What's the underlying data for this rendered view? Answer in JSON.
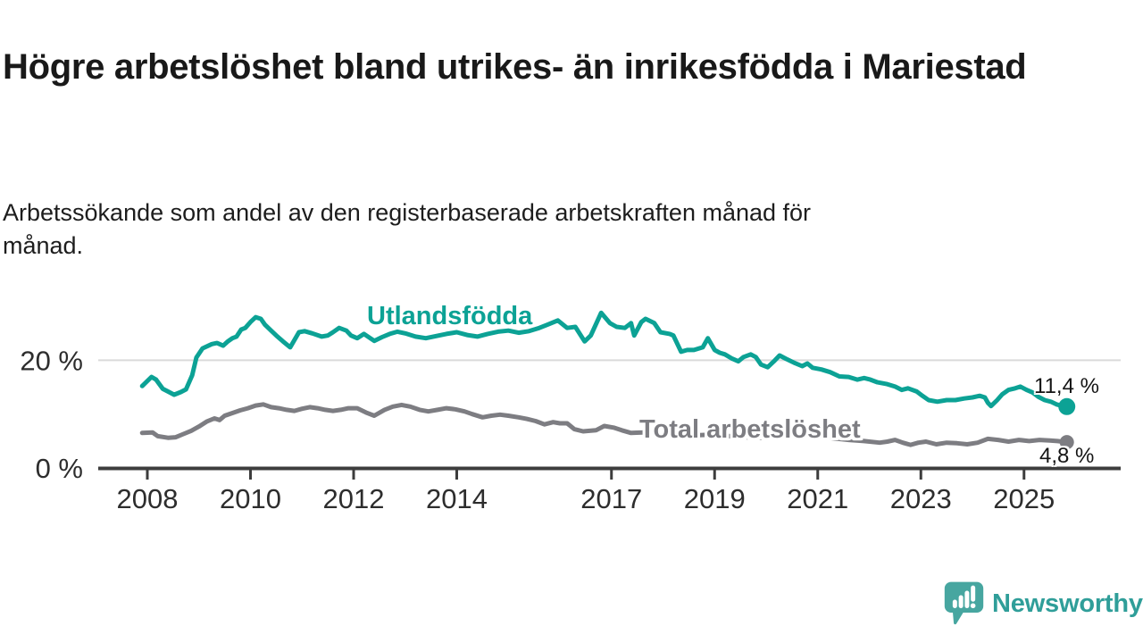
{
  "header": {
    "title_lines": [
      "Högre arbetslöshet bland utrikes- än inrikesfödda i",
      "Mariestad"
    ],
    "title": "Högre arbetslöshet bland utrikes- än inrikesfödda i Mariestad",
    "subtitle": "Arbetssökande som andel av den registerbaserade arbetskraften månad för månad.",
    "subtitle_lines": [
      "Arbetssökande som andel av den registerbaserade arbetskraften månad för",
      "månad."
    ]
  },
  "branding": {
    "name": "Newsworthy",
    "logo_icon": "speech-bubble-bar-chart",
    "bubble_color": "#47A6A0",
    "text_color": "#2F9E99"
  },
  "chart_data": {
    "type": "line",
    "unit": "%",
    "grid": "horizontal line at 20% only",
    "legend_position": "inline labels on lines",
    "x_axis": {
      "tick_years": [
        2008,
        2010,
        2012,
        2014,
        2017,
        2019,
        2021,
        2023,
        2025
      ],
      "range": [
        2007.0,
        2026.9
      ]
    },
    "y_axis": {
      "ticks": [
        {
          "value": 0,
          "label": "0 %"
        },
        {
          "value": 20,
          "label": "20 %"
        }
      ],
      "range": [
        0,
        30.5
      ]
    },
    "series": [
      {
        "label": "Utlandsfödda",
        "color": "#0CA295",
        "end_value": 11.4,
        "end_label": "11,4 %",
        "points": [
          [
            2007.9,
            15.2
          ],
          [
            2008.08,
            16.9
          ],
          [
            2008.17,
            16.4
          ],
          [
            2008.3,
            14.7
          ],
          [
            2008.4,
            14.2
          ],
          [
            2008.52,
            13.6
          ],
          [
            2008.65,
            14.1
          ],
          [
            2008.75,
            14.6
          ],
          [
            2008.87,
            17.2
          ],
          [
            2008.95,
            20.5
          ],
          [
            2009.07,
            22.2
          ],
          [
            2009.25,
            23.0
          ],
          [
            2009.35,
            23.2
          ],
          [
            2009.47,
            22.7
          ],
          [
            2009.56,
            23.5
          ],
          [
            2009.65,
            24.1
          ],
          [
            2009.73,
            24.4
          ],
          [
            2009.82,
            25.7
          ],
          [
            2009.9,
            26.0
          ],
          [
            2010.0,
            27.1
          ],
          [
            2010.1,
            28.0
          ],
          [
            2010.2,
            27.7
          ],
          [
            2010.28,
            26.6
          ],
          [
            2010.4,
            25.5
          ],
          [
            2010.5,
            24.6
          ],
          [
            2010.63,
            23.5
          ],
          [
            2010.77,
            22.4
          ],
          [
            2010.94,
            25.2
          ],
          [
            2011.05,
            25.4
          ],
          [
            2011.2,
            25.0
          ],
          [
            2011.38,
            24.4
          ],
          [
            2011.5,
            24.6
          ],
          [
            2011.6,
            25.2
          ],
          [
            2011.72,
            26.0
          ],
          [
            2011.86,
            25.5
          ],
          [
            2011.95,
            24.6
          ],
          [
            2012.07,
            24.1
          ],
          [
            2012.2,
            24.9
          ],
          [
            2012.4,
            23.6
          ],
          [
            2012.55,
            24.3
          ],
          [
            2012.7,
            24.9
          ],
          [
            2012.85,
            25.3
          ],
          [
            2013.0,
            25.0
          ],
          [
            2013.2,
            24.4
          ],
          [
            2013.4,
            24.1
          ],
          [
            2013.6,
            24.5
          ],
          [
            2013.8,
            24.9
          ],
          [
            2014.0,
            25.2
          ],
          [
            2014.2,
            24.7
          ],
          [
            2014.4,
            24.4
          ],
          [
            2014.6,
            24.9
          ],
          [
            2014.8,
            25.3
          ],
          [
            2015.0,
            25.5
          ],
          [
            2015.2,
            25.1
          ],
          [
            2015.4,
            25.4
          ],
          [
            2015.6,
            26.0
          ],
          [
            2015.76,
            26.6
          ],
          [
            2015.96,
            27.4
          ],
          [
            2016.14,
            26.0
          ],
          [
            2016.3,
            26.2
          ],
          [
            2016.48,
            23.5
          ],
          [
            2016.6,
            24.6
          ],
          [
            2016.8,
            28.8
          ],
          [
            2016.97,
            26.9
          ],
          [
            2017.1,
            26.2
          ],
          [
            2017.26,
            26.0
          ],
          [
            2017.38,
            26.9
          ],
          [
            2017.44,
            24.6
          ],
          [
            2017.58,
            27.1
          ],
          [
            2017.66,
            27.7
          ],
          [
            2017.83,
            26.9
          ],
          [
            2017.95,
            25.2
          ],
          [
            2018.13,
            24.9
          ],
          [
            2018.2,
            24.6
          ],
          [
            2018.35,
            21.6
          ],
          [
            2018.47,
            21.9
          ],
          [
            2018.6,
            21.9
          ],
          [
            2018.77,
            22.4
          ],
          [
            2018.87,
            24.1
          ],
          [
            2019.0,
            21.9
          ],
          [
            2019.1,
            21.4
          ],
          [
            2019.2,
            21.1
          ],
          [
            2019.34,
            20.3
          ],
          [
            2019.46,
            19.8
          ],
          [
            2019.56,
            20.6
          ],
          [
            2019.7,
            21.1
          ],
          [
            2019.8,
            20.6
          ],
          [
            2019.9,
            19.2
          ],
          [
            2020.03,
            18.7
          ],
          [
            2020.15,
            19.8
          ],
          [
            2020.26,
            20.9
          ],
          [
            2020.38,
            20.3
          ],
          [
            2020.55,
            19.5
          ],
          [
            2020.7,
            18.9
          ],
          [
            2020.8,
            19.4
          ],
          [
            2020.9,
            18.6
          ],
          [
            2021.07,
            18.3
          ],
          [
            2021.24,
            17.8
          ],
          [
            2021.42,
            17.0
          ],
          [
            2021.6,
            16.9
          ],
          [
            2021.77,
            16.4
          ],
          [
            2021.9,
            16.7
          ],
          [
            2022.02,
            16.4
          ],
          [
            2022.16,
            15.9
          ],
          [
            2022.33,
            15.6
          ],
          [
            2022.5,
            15.1
          ],
          [
            2022.63,
            14.5
          ],
          [
            2022.75,
            14.8
          ],
          [
            2022.92,
            14.2
          ],
          [
            2023.03,
            13.4
          ],
          [
            2023.15,
            12.6
          ],
          [
            2023.32,
            12.3
          ],
          [
            2023.5,
            12.6
          ],
          [
            2023.67,
            12.6
          ],
          [
            2023.84,
            12.9
          ],
          [
            2024.0,
            13.1
          ],
          [
            2024.14,
            13.4
          ],
          [
            2024.24,
            13.1
          ],
          [
            2024.3,
            12.1
          ],
          [
            2024.36,
            11.5
          ],
          [
            2024.48,
            12.6
          ],
          [
            2024.58,
            13.7
          ],
          [
            2024.7,
            14.5
          ],
          [
            2024.83,
            14.8
          ],
          [
            2024.93,
            15.1
          ],
          [
            2025.05,
            14.5
          ],
          [
            2025.17,
            14.0
          ],
          [
            2025.28,
            13.2
          ],
          [
            2025.4,
            12.6
          ],
          [
            2025.52,
            12.3
          ],
          [
            2025.63,
            11.8
          ],
          [
            2025.75,
            11.5
          ],
          [
            2025.83,
            11.4
          ]
        ]
      },
      {
        "label": "Total arbetslöshet",
        "color": "#7D7D82",
        "end_value": 4.8,
        "end_label": "4,8 %",
        "points": [
          [
            2007.9,
            6.5
          ],
          [
            2008.1,
            6.6
          ],
          [
            2008.2,
            5.9
          ],
          [
            2008.4,
            5.6
          ],
          [
            2008.55,
            5.7
          ],
          [
            2008.7,
            6.3
          ],
          [
            2008.85,
            6.9
          ],
          [
            2009.0,
            7.7
          ],
          [
            2009.15,
            8.6
          ],
          [
            2009.3,
            9.2
          ],
          [
            2009.4,
            8.9
          ],
          [
            2009.5,
            9.7
          ],
          [
            2009.65,
            10.2
          ],
          [
            2009.8,
            10.7
          ],
          [
            2009.95,
            11.1
          ],
          [
            2010.1,
            11.6
          ],
          [
            2010.25,
            11.8
          ],
          [
            2010.4,
            11.3
          ],
          [
            2010.55,
            11.1
          ],
          [
            2010.7,
            10.8
          ],
          [
            2010.85,
            10.6
          ],
          [
            2011.0,
            11.0
          ],
          [
            2011.15,
            11.3
          ],
          [
            2011.3,
            11.1
          ],
          [
            2011.45,
            10.8
          ],
          [
            2011.6,
            10.6
          ],
          [
            2011.75,
            10.8
          ],
          [
            2011.9,
            11.1
          ],
          [
            2012.07,
            11.1
          ],
          [
            2012.24,
            10.3
          ],
          [
            2012.4,
            9.7
          ],
          [
            2012.6,
            10.8
          ],
          [
            2012.76,
            11.4
          ],
          [
            2012.93,
            11.7
          ],
          [
            2013.1,
            11.4
          ],
          [
            2013.28,
            10.8
          ],
          [
            2013.45,
            10.5
          ],
          [
            2013.63,
            10.8
          ],
          [
            2013.8,
            11.1
          ],
          [
            2013.97,
            10.9
          ],
          [
            2014.15,
            10.5
          ],
          [
            2014.3,
            10.0
          ],
          [
            2014.5,
            9.4
          ],
          [
            2014.67,
            9.7
          ],
          [
            2014.84,
            9.9
          ],
          [
            2015.0,
            9.7
          ],
          [
            2015.2,
            9.4
          ],
          [
            2015.36,
            9.1
          ],
          [
            2015.53,
            8.7
          ],
          [
            2015.7,
            8.1
          ],
          [
            2015.87,
            8.5
          ],
          [
            2016.0,
            8.3
          ],
          [
            2016.14,
            8.3
          ],
          [
            2016.28,
            7.2
          ],
          [
            2016.45,
            6.8
          ],
          [
            2016.7,
            7.0
          ],
          [
            2016.86,
            7.8
          ],
          [
            2017.04,
            7.5
          ],
          [
            2017.2,
            7.0
          ],
          [
            2017.38,
            6.5
          ],
          [
            2017.6,
            6.6
          ],
          [
            2017.85,
            6.8
          ],
          [
            2018.1,
            6.6
          ],
          [
            2018.4,
            6.3
          ],
          [
            2018.7,
            6.1
          ],
          [
            2019.0,
            6.2
          ],
          [
            2019.3,
            5.9
          ],
          [
            2019.6,
            5.7
          ],
          [
            2019.9,
            5.6
          ],
          [
            2020.2,
            6.1
          ],
          [
            2020.45,
            6.3
          ],
          [
            2020.7,
            6.1
          ],
          [
            2021.0,
            5.8
          ],
          [
            2021.3,
            5.5
          ],
          [
            2021.6,
            5.2
          ],
          [
            2021.9,
            5.0
          ],
          [
            2022.2,
            4.7
          ],
          [
            2022.35,
            4.9
          ],
          [
            2022.5,
            5.2
          ],
          [
            2022.65,
            4.7
          ],
          [
            2022.8,
            4.3
          ],
          [
            2022.95,
            4.7
          ],
          [
            2023.1,
            4.9
          ],
          [
            2023.3,
            4.4
          ],
          [
            2023.5,
            4.7
          ],
          [
            2023.7,
            4.6
          ],
          [
            2023.9,
            4.4
          ],
          [
            2024.1,
            4.7
          ],
          [
            2024.3,
            5.4
          ],
          [
            2024.5,
            5.2
          ],
          [
            2024.7,
            4.9
          ],
          [
            2024.9,
            5.2
          ],
          [
            2025.1,
            5.0
          ],
          [
            2025.3,
            5.2
          ],
          [
            2025.5,
            5.1
          ],
          [
            2025.65,
            5.0
          ],
          [
            2025.83,
            4.8
          ]
        ]
      }
    ]
  }
}
